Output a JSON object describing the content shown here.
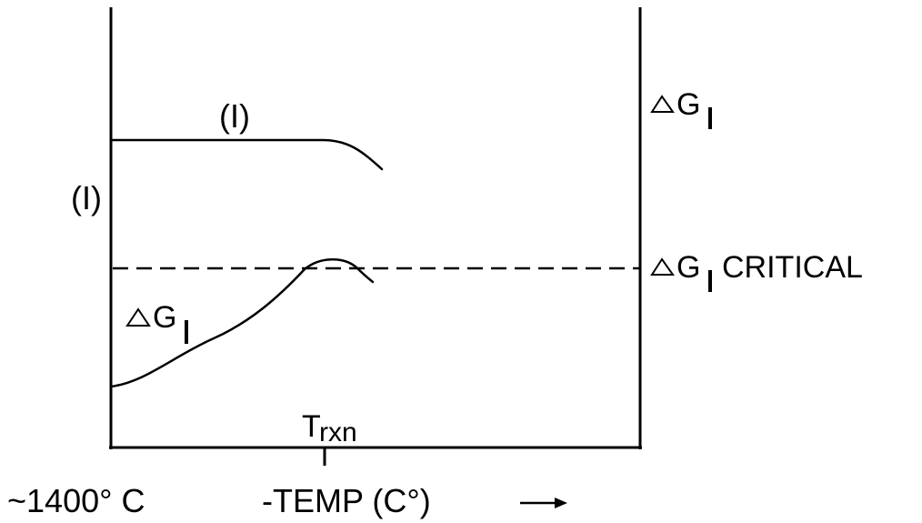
{
  "chart_data": {
    "type": "line",
    "title": "",
    "xlabel": "-TEMP (C°)",
    "ylabel": "",
    "x_tick_left": "~1400° C",
    "x_tick_marker": "Trxn",
    "axis_arrow": "→",
    "right_axis_labels": {
      "top": "△GI",
      "critical": "△GI CRITICAL"
    },
    "series": [
      {
        "name": "(I)",
        "label": "(I)",
        "side_label": "(I)"
      },
      {
        "name": "△GI",
        "label": "△GI"
      }
    ],
    "reference_line": {
      "label": "△GI CRITICAL",
      "style": "dashed"
    },
    "grid": false,
    "legend": "none",
    "colors": {
      "line": "#000000",
      "background": "#ffffff"
    }
  }
}
